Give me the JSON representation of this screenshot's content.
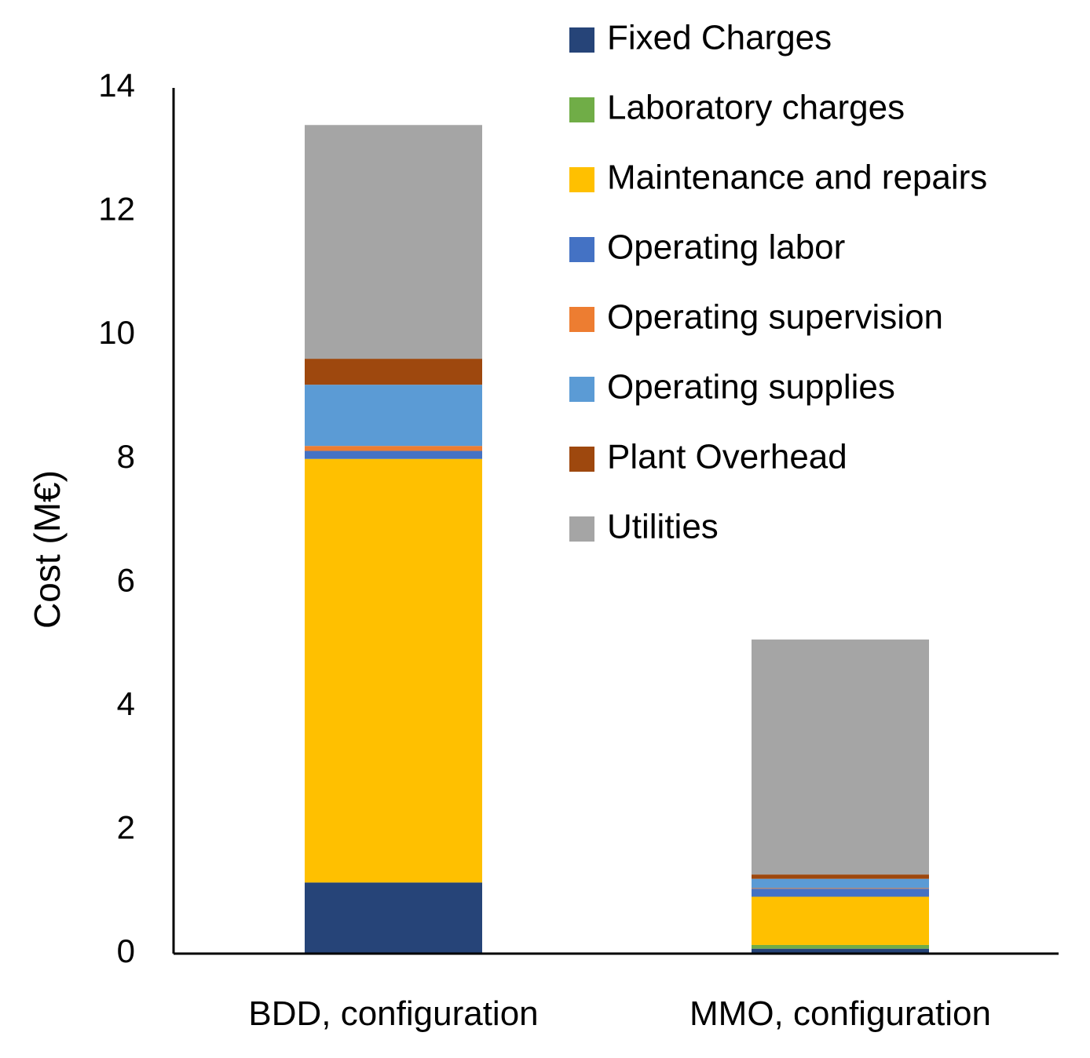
{
  "chart_data": {
    "type": "bar",
    "stacked": true,
    "title": "",
    "xlabel": "",
    "ylabel": "Cost (M€)",
    "ylim": [
      0,
      14
    ],
    "yticks": [
      0,
      2,
      4,
      6,
      8,
      10,
      12,
      14
    ],
    "grid": false,
    "legend_position": "top-right",
    "categories": [
      "BDD, configuration",
      "MMO, configuration"
    ],
    "series": [
      {
        "name": "Fixed Charges",
        "color": "#264478",
        "values": [
          1.15,
          0.08
        ]
      },
      {
        "name": "Laboratory charges",
        "color": "#70AD47",
        "values": [
          0.0,
          0.06
        ]
      },
      {
        "name": "Maintenance and repairs",
        "color": "#FFC000",
        "values": [
          6.85,
          0.78
        ]
      },
      {
        "name": "Operating labor",
        "color": "#4472C4",
        "values": [
          0.13,
          0.13
        ]
      },
      {
        "name": "Operating supervision",
        "color": "#ED7D31",
        "values": [
          0.08,
          0.01
        ]
      },
      {
        "name": "Operating supplies",
        "color": "#5B9BD5",
        "values": [
          0.99,
          0.15
        ]
      },
      {
        "name": "Plant Overhead",
        "color": "#9E480E",
        "values": [
          0.42,
          0.07
        ]
      },
      {
        "name": "Utilities",
        "color": "#A5A5A5",
        "values": [
          3.78,
          3.8
        ]
      }
    ]
  }
}
